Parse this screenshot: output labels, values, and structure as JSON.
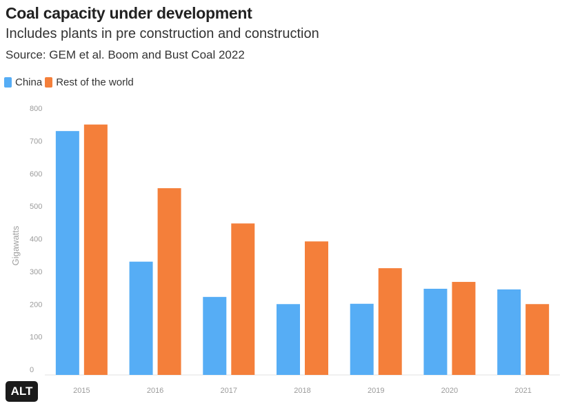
{
  "header": {
    "title": "Coal capacity under development",
    "subtitle": "Includes plants in pre construction and construction",
    "source": "Source: GEM et al. Boom and Bust Coal 2022"
  },
  "badge": {
    "label": "ALT"
  },
  "colors": {
    "china": "#56adf5",
    "rest": "#f47f3a"
  },
  "chart_data": {
    "type": "bar",
    "categories": [
      "2015",
      "2016",
      "2017",
      "2018",
      "2019",
      "2020",
      "2021"
    ],
    "series": [
      {
        "name": "China",
        "color": "#56adf5",
        "values": [
          730,
          330,
          222,
          200,
          201,
          247,
          245
        ]
      },
      {
        "name": "Rest of the world",
        "color": "#f47f3a",
        "values": [
          750,
          555,
          447,
          392,
          310,
          268,
          200
        ]
      }
    ],
    "title": "Coal capacity under development",
    "subtitle": "Includes plants in pre construction and construction",
    "ylabel": "Gigawatts",
    "xlabel": "",
    "ylim": [
      0,
      800
    ],
    "yticks": [
      0,
      100,
      200,
      300,
      400,
      500,
      600,
      700,
      800
    ],
    "grid": false,
    "legend": "top-left"
  }
}
